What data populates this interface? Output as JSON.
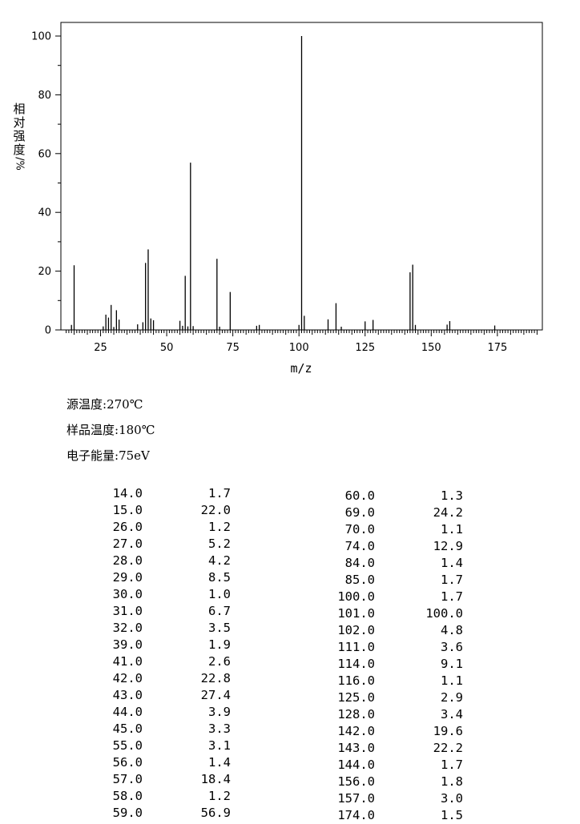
{
  "chart_data": {
    "type": "bar",
    "title": "",
    "xlabel": "m/z",
    "ylabel_chars": [
      "相",
      "对",
      "强",
      "度"
    ],
    "ylabel_unit": "%",
    "xlim": [
      10,
      192
    ],
    "ylim": [
      0,
      100
    ],
    "xticks": [
      25,
      50,
      75,
      100,
      125,
      150,
      175
    ],
    "yticks": [
      0,
      20,
      40,
      60,
      80,
      100
    ],
    "peaks": [
      {
        "mz": 14,
        "intensity": 1.7
      },
      {
        "mz": 15,
        "intensity": 22.0
      },
      {
        "mz": 26,
        "intensity": 1.2
      },
      {
        "mz": 27,
        "intensity": 5.2
      },
      {
        "mz": 28,
        "intensity": 4.2
      },
      {
        "mz": 29,
        "intensity": 8.5
      },
      {
        "mz": 30,
        "intensity": 1.0
      },
      {
        "mz": 31,
        "intensity": 6.7
      },
      {
        "mz": 32,
        "intensity": 3.5
      },
      {
        "mz": 39,
        "intensity": 1.9
      },
      {
        "mz": 41,
        "intensity": 2.6
      },
      {
        "mz": 42,
        "intensity": 22.8
      },
      {
        "mz": 43,
        "intensity": 27.4
      },
      {
        "mz": 44,
        "intensity": 3.9
      },
      {
        "mz": 45,
        "intensity": 3.3
      },
      {
        "mz": 55,
        "intensity": 3.1
      },
      {
        "mz": 56,
        "intensity": 1.4
      },
      {
        "mz": 57,
        "intensity": 18.4
      },
      {
        "mz": 58,
        "intensity": 1.2
      },
      {
        "mz": 59,
        "intensity": 56.9
      },
      {
        "mz": 60,
        "intensity": 1.3
      },
      {
        "mz": 69,
        "intensity": 24.2
      },
      {
        "mz": 70,
        "intensity": 1.1
      },
      {
        "mz": 74,
        "intensity": 12.9
      },
      {
        "mz": 84,
        "intensity": 1.4
      },
      {
        "mz": 85,
        "intensity": 1.7
      },
      {
        "mz": 100,
        "intensity": 1.7
      },
      {
        "mz": 101,
        "intensity": 100.0
      },
      {
        "mz": 102,
        "intensity": 4.8
      },
      {
        "mz": 111,
        "intensity": 3.6
      },
      {
        "mz": 114,
        "intensity": 9.1
      },
      {
        "mz": 116,
        "intensity": 1.1
      },
      {
        "mz": 125,
        "intensity": 2.9
      },
      {
        "mz": 128,
        "intensity": 3.4
      },
      {
        "mz": 142,
        "intensity": 19.6
      },
      {
        "mz": 143,
        "intensity": 22.2
      },
      {
        "mz": 144,
        "intensity": 1.7
      },
      {
        "mz": 156,
        "intensity": 1.8
      },
      {
        "mz": 157,
        "intensity": 3.0
      },
      {
        "mz": 174,
        "intensity": 1.5
      }
    ]
  },
  "conditions": [
    {
      "label": "源温度:",
      "value": "270℃"
    },
    {
      "label": "样品温度:",
      "value": "180℃"
    },
    {
      "label": "电子能量:",
      "value": "75eV"
    }
  ],
  "table_left": [
    [
      "14.0",
      "1.7"
    ],
    [
      "15.0",
      "22.0"
    ],
    [
      "26.0",
      "1.2"
    ],
    [
      "27.0",
      "5.2"
    ],
    [
      "28.0",
      "4.2"
    ],
    [
      "29.0",
      "8.5"
    ],
    [
      "30.0",
      "1.0"
    ],
    [
      "31.0",
      "6.7"
    ],
    [
      "32.0",
      "3.5"
    ],
    [
      "39.0",
      "1.9"
    ],
    [
      "41.0",
      "2.6"
    ],
    [
      "42.0",
      "22.8"
    ],
    [
      "43.0",
      "27.4"
    ],
    [
      "44.0",
      "3.9"
    ],
    [
      "45.0",
      "3.3"
    ],
    [
      "55.0",
      "3.1"
    ],
    [
      "56.0",
      "1.4"
    ],
    [
      "57.0",
      "18.4"
    ],
    [
      "58.0",
      "1.2"
    ],
    [
      "59.0",
      "56.9"
    ]
  ],
  "table_right": [
    [
      "60.0",
      "1.3"
    ],
    [
      "69.0",
      "24.2"
    ],
    [
      "70.0",
      "1.1"
    ],
    [
      "74.0",
      "12.9"
    ],
    [
      "84.0",
      "1.4"
    ],
    [
      "85.0",
      "1.7"
    ],
    [
      "100.0",
      "1.7"
    ],
    [
      "101.0",
      "100.0"
    ],
    [
      "102.0",
      "4.8"
    ],
    [
      "111.0",
      "3.6"
    ],
    [
      "114.0",
      "9.1"
    ],
    [
      "116.0",
      "1.1"
    ],
    [
      "125.0",
      "2.9"
    ],
    [
      "128.0",
      "3.4"
    ],
    [
      "142.0",
      "19.6"
    ],
    [
      "143.0",
      "22.2"
    ],
    [
      "144.0",
      "1.7"
    ],
    [
      "156.0",
      "1.8"
    ],
    [
      "157.0",
      "3.0"
    ],
    [
      "174.0",
      "1.5"
    ]
  ]
}
